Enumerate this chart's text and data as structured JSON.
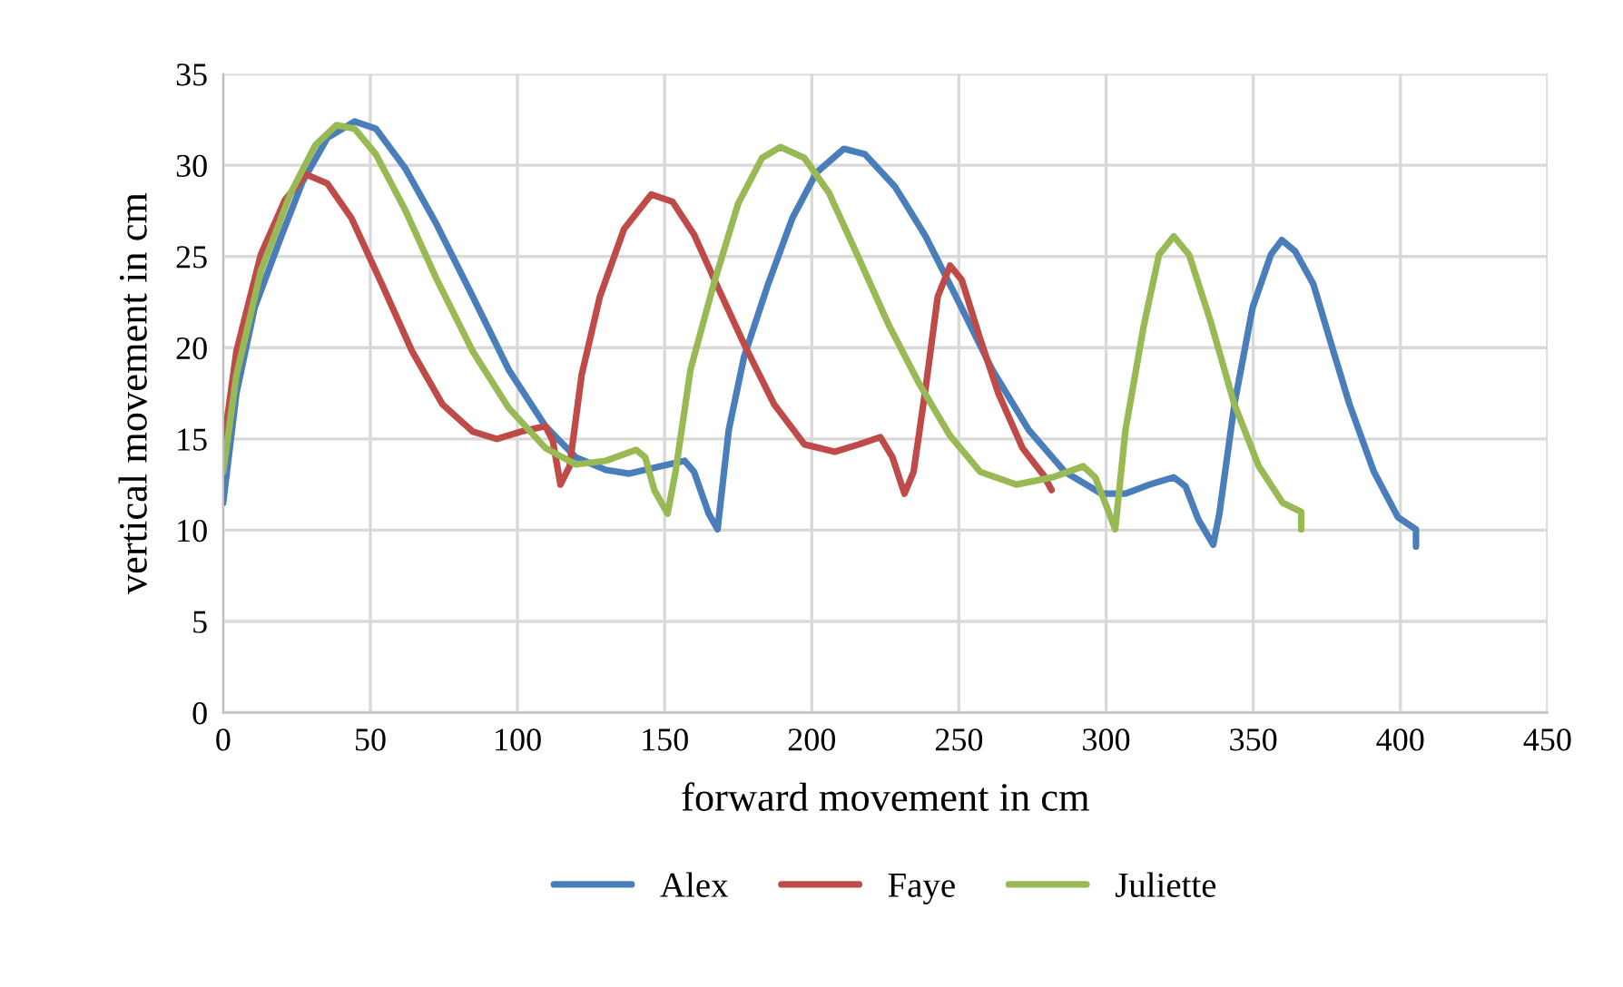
{
  "chart_data": {
    "type": "line",
    "xlabel": "forward movement in cm",
    "ylabel": "vertical movement in cm",
    "xlim": [
      0,
      450
    ],
    "xticks": [
      0,
      50,
      100,
      150,
      200,
      250,
      300,
      350,
      400,
      450
    ],
    "ylim": [
      0,
      35
    ],
    "yticks": [
      0,
      5,
      10,
      15,
      20,
      25,
      30,
      35
    ],
    "grid": true,
    "legend": "bottom",
    "marker": "none",
    "line_style": "solid",
    "series": [
      {
        "name": "Alex",
        "color": "#4a7ebb",
        "x": [
          0,
          4.5,
          10.7,
          19,
          27,
          35.4,
          44.7,
          51.9,
          62,
          72.4,
          84.8,
          97,
          109.5,
          119.8,
          130,
          138,
          148.6,
          156.8,
          160,
          165,
          168,
          171.8,
          177,
          185.2,
          193.4,
          201.6,
          210.9,
          218.1,
          228.4,
          238.7,
          249,
          261.3,
          273.7,
          286,
          298.4,
          306.6,
          314.8,
          323,
          327,
          331.3,
          336.4,
          338.5,
          343.6,
          349.8,
          356,
          359.7,
          364.2,
          370.4,
          376.5,
          382.7,
          391,
          399.2,
          405.3,
          405.3
        ],
        "values": [
          11.5,
          17.5,
          22.2,
          25.8,
          29.1,
          31.5,
          32.4,
          32,
          29.8,
          26.8,
          22.8,
          18.8,
          15.7,
          14,
          13.3,
          13.1,
          13.5,
          13.8,
          13.2,
          10.9,
          10.05,
          15.5,
          19.5,
          23.5,
          27.1,
          29.6,
          30.9,
          30.6,
          28.8,
          26.1,
          22.8,
          18.8,
          15.5,
          13.2,
          12,
          12,
          12.5,
          12.9,
          12.4,
          10.6,
          9.2,
          10.9,
          16.9,
          22.2,
          25.1,
          25.9,
          25.3,
          23.5,
          20.2,
          16.9,
          13.2,
          10.7,
          10.05,
          9.1
        ]
      },
      {
        "name": "Faye",
        "color": "#be4b48",
        "x": [
          0,
          4.5,
          12.8,
          21,
          28.2,
          35.4,
          43.6,
          53.9,
          64.2,
          74.5,
          84.8,
          93,
          101.2,
          109.5,
          112,
          114.6,
          117.7,
          121.8,
          128,
          136.2,
          145.5,
          152.7,
          160,
          166.7,
          177,
          187.2,
          197.5,
          207.8,
          216,
          223.3,
          227.4,
          231.5,
          234.6,
          238.7,
          242.8,
          247,
          251,
          257.2,
          263.4,
          271.6,
          278.8,
          281.5
        ],
        "values": [
          14.5,
          19.8,
          25.1,
          28.1,
          29.5,
          29,
          27.1,
          23.5,
          19.8,
          16.9,
          15.4,
          15,
          15.4,
          15.7,
          14.9,
          12.5,
          13.5,
          18.5,
          22.8,
          26.5,
          28.4,
          28,
          26.2,
          23.8,
          20.2,
          16.9,
          14.7,
          14.3,
          14.7,
          15.1,
          14,
          12,
          13.2,
          17.8,
          22.8,
          24.5,
          23.7,
          20.5,
          17.5,
          14.5,
          13,
          12.2
        ]
      },
      {
        "name": "Juliette",
        "color": "#98b954",
        "x": [
          0,
          4.5,
          12.8,
          23,
          31.3,
          38.5,
          44.7,
          51.9,
          62,
          72.4,
          84.8,
          97,
          109.5,
          119.8,
          130,
          140.3,
          143.4,
          146.5,
          151,
          153.7,
          158.8,
          166.7,
          175,
          183.1,
          189.3,
          197.5,
          205.8,
          216,
          226.3,
          236.6,
          246.9,
          257.2,
          269.5,
          281.9,
          292.2,
          296.3,
          300.4,
          303.1,
          306.6,
          312.8,
          318,
          323,
          328.2,
          335.4,
          343.6,
          351.9,
          360,
          366.3,
          366.3
        ],
        "values": [
          13.2,
          18.5,
          24.2,
          28.5,
          31.1,
          32.2,
          32,
          30.6,
          27.5,
          23.8,
          19.8,
          16.7,
          14.5,
          13.6,
          13.8,
          14.4,
          14,
          12.2,
          10.9,
          13.2,
          18.8,
          23.5,
          27.9,
          30.4,
          31,
          30.4,
          28.5,
          24.9,
          21.2,
          18,
          15.2,
          13.2,
          12.5,
          12.9,
          13.5,
          12.9,
          11.2,
          10.05,
          15.5,
          21.2,
          25.1,
          26.1,
          25.1,
          21.5,
          16.9,
          13.5,
          11.5,
          11,
          10.05
        ]
      }
    ]
  }
}
